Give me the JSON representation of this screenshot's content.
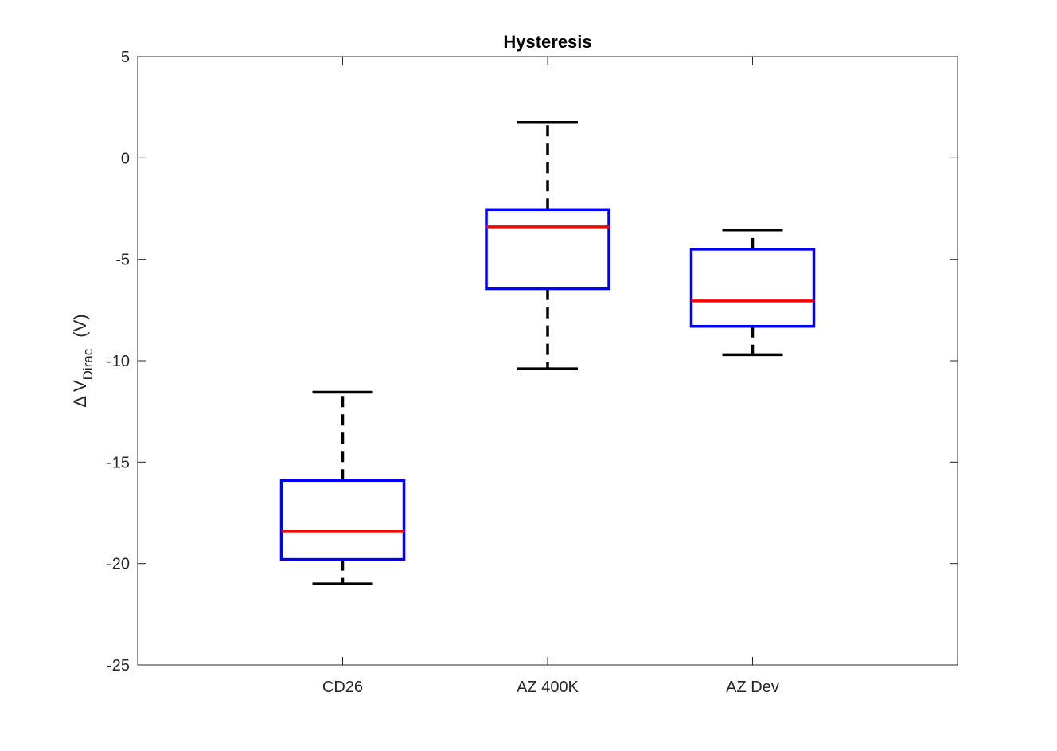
{
  "chart_data": {
    "type": "box",
    "title": "Hysteresis",
    "ylabel": {
      "prefix": "Δ V",
      "subscript": "Dirac",
      "suffix": "(V)"
    },
    "xlabel": "",
    "ylim": [
      -25,
      5
    ],
    "yticks": [
      -25,
      -20,
      -15,
      -10,
      -5,
      0,
      5
    ],
    "grid": false,
    "categories": [
      "CD26",
      "AZ 400K",
      "AZ Dev"
    ],
    "boxes": [
      {
        "category": "CD26",
        "whisker_low": -21.0,
        "q1": -19.8,
        "median": -18.4,
        "q3": -15.9,
        "whisker_high": -11.55
      },
      {
        "category": "AZ 400K",
        "whisker_low": -10.4,
        "q1": -6.45,
        "median": -3.4,
        "q3": -2.55,
        "whisker_high": 1.75
      },
      {
        "category": "AZ Dev",
        "whisker_low": -9.7,
        "q1": -8.3,
        "median": -7.05,
        "q3": -4.5,
        "whisker_high": -3.55
      }
    ],
    "colors": {
      "box": "#0000ff",
      "median": "#ff0000",
      "whisker": "#000000",
      "axes": "#262626"
    }
  }
}
